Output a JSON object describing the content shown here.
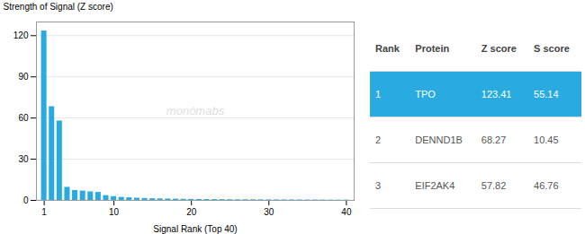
{
  "chart_data": {
    "type": "bar",
    "x": [
      1,
      2,
      3,
      4,
      5,
      6,
      7,
      8,
      9,
      10,
      11,
      12,
      13,
      14,
      15,
      16,
      17,
      18,
      19,
      20,
      21,
      22,
      23,
      24,
      25,
      26,
      27,
      28,
      29,
      30,
      31,
      32,
      33,
      34,
      35,
      36,
      37,
      38,
      39,
      40
    ],
    "values": [
      123.41,
      68.27,
      57.82,
      9.5,
      7.2,
      6.8,
      6.2,
      5.8,
      3.5,
      2.8,
      2.2,
      1.9,
      1.6,
      1.4,
      1.2,
      1.1,
      1.0,
      0.9,
      0.8,
      0.75,
      0.7,
      0.65,
      0.6,
      0.55,
      0.5,
      0.48,
      0.46,
      0.44,
      0.42,
      0.4,
      0.38,
      0.36,
      0.34,
      0.32,
      0.3,
      0.28,
      0.26,
      0.24,
      0.22,
      0.2
    ],
    "color": "#29abe2",
    "xlabel": "Signal Rank (Top 40)",
    "ylabel": "Strength of Signal (Z score)",
    "xlim": [
      0,
      41
    ],
    "xticks": [
      1,
      10,
      20,
      30,
      40
    ],
    "ylim": [
      0,
      130
    ],
    "yticks": [
      0,
      30,
      60,
      90,
      120
    ],
    "grid": true,
    "annotations": [
      {
        "text": "monómabs",
        "color": "#dedede"
      }
    ],
    "table": {
      "columns": [
        "Rank",
        "Protein",
        "Z score",
        "S score"
      ],
      "rows": [
        [
          "1",
          "TPO",
          "123.41",
          "55.14"
        ],
        [
          "2",
          "DENND1B",
          "68.27",
          "10.45"
        ],
        [
          "3",
          "EIF2AK4",
          "57.82",
          "46.76"
        ]
      ]
    }
  }
}
